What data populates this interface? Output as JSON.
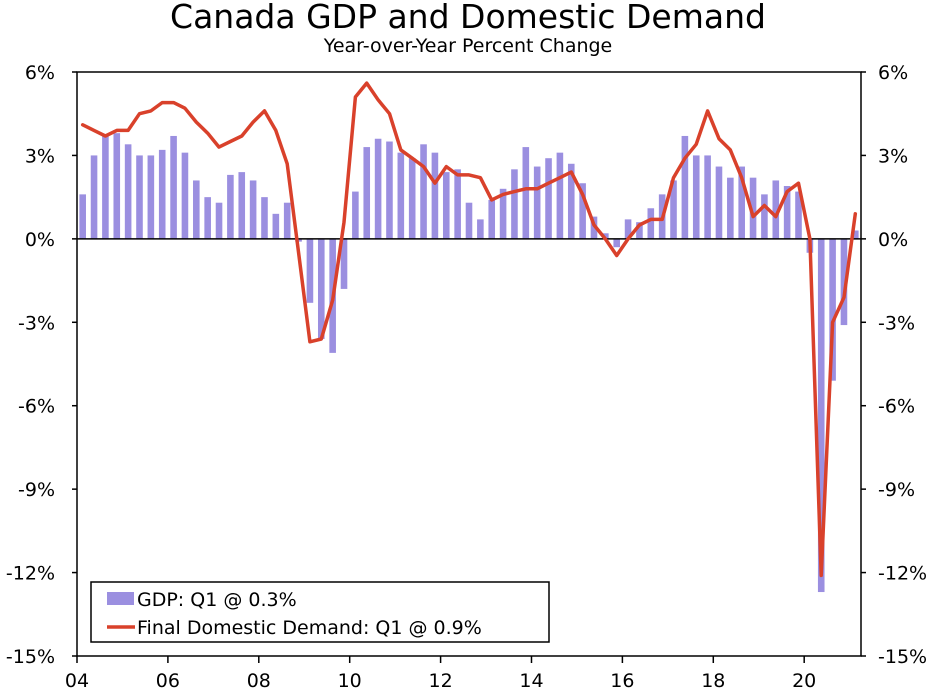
{
  "chart_data": {
    "type": "bar+line",
    "title": "Canada GDP and Domestic Demand",
    "subtitle": "Year-over-Year Percent Change",
    "y_ticks": [
      "6%",
      "3%",
      "0%",
      "-3%",
      "-6%",
      "-9%",
      "-12%",
      "-15%"
    ],
    "y_tick_values": [
      6,
      3,
      0,
      -3,
      -6,
      -9,
      -12,
      -15
    ],
    "ylim": [
      -15,
      6
    ],
    "x_ticks": [
      "04",
      "06",
      "08",
      "10",
      "12",
      "14",
      "16",
      "18",
      "20"
    ],
    "x_tick_positions": [
      2004,
      2006,
      2008,
      2010,
      2012,
      2014,
      2016,
      2018,
      2020
    ],
    "xlim": [
      2004,
      2021.25
    ],
    "quarters": [
      "2004Q1",
      "2004Q2",
      "2004Q3",
      "2004Q4",
      "2005Q1",
      "2005Q2",
      "2005Q3",
      "2005Q4",
      "2006Q1",
      "2006Q2",
      "2006Q3",
      "2006Q4",
      "2007Q1",
      "2007Q2",
      "2007Q3",
      "2007Q4",
      "2008Q1",
      "2008Q2",
      "2008Q3",
      "2008Q4",
      "2009Q1",
      "2009Q2",
      "2009Q3",
      "2009Q4",
      "2010Q1",
      "2010Q2",
      "2010Q3",
      "2010Q4",
      "2011Q1",
      "2011Q2",
      "2011Q3",
      "2011Q4",
      "2012Q1",
      "2012Q2",
      "2012Q3",
      "2012Q4",
      "2013Q1",
      "2013Q2",
      "2013Q3",
      "2013Q4",
      "2014Q1",
      "2014Q2",
      "2014Q3",
      "2014Q4",
      "2015Q1",
      "2015Q2",
      "2015Q3",
      "2015Q4",
      "2016Q1",
      "2016Q2",
      "2016Q3",
      "2016Q4",
      "2017Q1",
      "2017Q2",
      "2017Q3",
      "2017Q4",
      "2018Q1",
      "2018Q2",
      "2018Q3",
      "2018Q4",
      "2019Q1",
      "2019Q2",
      "2019Q3",
      "2019Q4",
      "2020Q1",
      "2020Q2",
      "2020Q3",
      "2020Q4",
      "2021Q1"
    ],
    "series": [
      {
        "name": "GDP: Q1 @ 0.3%",
        "type": "bar",
        "color": "#9b8fe0",
        "values": [
          1.6,
          3.0,
          3.7,
          3.8,
          3.4,
          3.0,
          3.0,
          3.2,
          3.7,
          3.1,
          2.1,
          1.5,
          1.3,
          2.3,
          2.4,
          2.1,
          1.5,
          0.9,
          1.3,
          -0.1,
          -2.3,
          -3.6,
          -4.1,
          -1.8,
          1.7,
          3.3,
          3.6,
          3.5,
          3.1,
          2.9,
          3.4,
          3.1,
          2.4,
          2.5,
          1.3,
          0.7,
          1.4,
          1.8,
          2.5,
          3.3,
          2.6,
          2.9,
          3.1,
          2.7,
          2.0,
          0.8,
          0.2,
          -0.3,
          0.7,
          0.6,
          1.1,
          1.6,
          2.1,
          3.7,
          3.0,
          3.0,
          2.6,
          2.2,
          2.6,
          2.2,
          1.6,
          2.1,
          1.9,
          1.7,
          -0.5,
          -12.7,
          -5.1,
          -3.1,
          0.3
        ]
      },
      {
        "name": "Final Domestic Demand: Q1 @ 0.9%",
        "type": "line",
        "color": "#d9412b",
        "values": [
          4.1,
          3.9,
          3.7,
          3.9,
          3.9,
          4.5,
          4.6,
          4.9,
          4.9,
          4.7,
          4.2,
          3.8,
          3.3,
          3.5,
          3.7,
          4.2,
          4.6,
          3.9,
          2.7,
          -0.5,
          -3.7,
          -3.6,
          -2.2,
          0.6,
          5.1,
          5.6,
          5.0,
          4.5,
          3.2,
          2.9,
          2.6,
          2.0,
          2.6,
          2.3,
          2.3,
          2.2,
          1.4,
          1.6,
          1.7,
          1.8,
          1.8,
          2.0,
          2.2,
          2.4,
          1.6,
          0.5,
          0.0,
          -0.6,
          0.0,
          0.5,
          0.7,
          0.7,
          2.2,
          2.9,
          3.4,
          4.6,
          3.6,
          3.2,
          2.2,
          0.8,
          1.2,
          0.8,
          1.7,
          2.0,
          0.0,
          -12.1,
          -3.0,
          -2.1,
          0.9
        ]
      }
    ],
    "legend": {
      "position": "bottom-left"
    },
    "grid": false
  },
  "legend_labels": {
    "gdp": "GDP: Q1 @ 0.3%",
    "fdd": "Final Domestic Demand: Q1 @ 0.9%"
  }
}
